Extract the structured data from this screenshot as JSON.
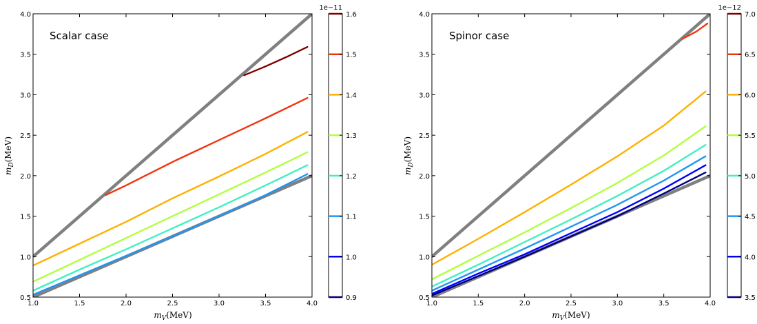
{
  "chart_data": [
    {
      "type": "line",
      "annotation": "Scalar case",
      "xlabel": "m_V(MeV)",
      "ylabel": "m_D(MeV)",
      "xlim": [
        1.0,
        4.0
      ],
      "ylim": [
        0.5,
        4.0
      ],
      "x_ticks": [
        "1.0",
        "1.5",
        "2.0",
        "2.5",
        "3.0",
        "3.5",
        "4.0"
      ],
      "y_ticks": [
        "0.5",
        "1.0",
        "1.5",
        "2.0",
        "2.5",
        "3.0",
        "3.5",
        "4.0"
      ],
      "grid": false,
      "boundary_lines": [
        {
          "color": "#808080",
          "points": [
            [
              1.0,
              1.0
            ],
            [
              4.0,
              4.0
            ]
          ]
        },
        {
          "color": "#808080",
          "points": [
            [
              1.0,
              0.5
            ],
            [
              4.0,
              2.0
            ]
          ]
        }
      ],
      "contours": [
        {
          "level": "1.0",
          "color": "#0000ff",
          "points": []
        },
        {
          "level": "1.1",
          "color": "#1f96f3",
          "points": [
            [
              1.0,
              0.53
            ],
            [
              1.5,
              0.77
            ],
            [
              2.0,
              1.01
            ],
            [
              2.5,
              1.25
            ],
            [
              3.0,
              1.5
            ],
            [
              3.5,
              1.76
            ],
            [
              3.95,
              2.02
            ]
          ]
        },
        {
          "level": "1.2",
          "color": "#40f0c0",
          "points": [
            [
              1.0,
              0.58
            ],
            [
              1.5,
              0.84
            ],
            [
              2.0,
              1.09
            ],
            [
              2.5,
              1.35
            ],
            [
              3.0,
              1.61
            ],
            [
              3.5,
              1.88
            ],
            [
              3.95,
              2.13
            ]
          ]
        },
        {
          "level": "1.3",
          "color": "#b0ff40",
          "points": [
            [
              1.0,
              0.69
            ],
            [
              1.5,
              0.96
            ],
            [
              2.0,
              1.23
            ],
            [
              2.5,
              1.5
            ],
            [
              3.0,
              1.77
            ],
            [
              3.5,
              2.04
            ],
            [
              3.95,
              2.29
            ]
          ]
        },
        {
          "level": "1.4",
          "color": "#ffb000",
          "points": [
            [
              1.0,
              0.89
            ],
            [
              1.5,
              1.16
            ],
            [
              2.0,
              1.43
            ],
            [
              2.5,
              1.72
            ],
            [
              3.0,
              1.99
            ],
            [
              3.5,
              2.27
            ],
            [
              3.95,
              2.54
            ]
          ]
        },
        {
          "level": "1.5",
          "color": "#f03410",
          "points": [
            [
              1.78,
              1.76
            ],
            [
              2.0,
              1.88
            ],
            [
              2.5,
              2.17
            ],
            [
              3.0,
              2.44
            ],
            [
              3.5,
              2.71
            ],
            [
              3.95,
              2.96
            ]
          ]
        },
        {
          "level": "1.6",
          "color": "#800000",
          "points": [
            [
              3.27,
              3.24
            ],
            [
              3.5,
              3.35
            ],
            [
              3.75,
              3.48
            ],
            [
              3.95,
              3.59
            ]
          ]
        }
      ],
      "colorbar": {
        "ticks": [
          "0.9",
          "1.0",
          "1.1",
          "1.2",
          "1.3",
          "1.4",
          "1.5",
          "1.6"
        ],
        "range": [
          0.9,
          1.6
        ],
        "exponent": "1e−11",
        "marks": [
          {
            "value": 0.9,
            "color": "#000080"
          },
          {
            "value": 1.0,
            "color": "#0000ff"
          },
          {
            "value": 1.1,
            "color": "#1f96f3"
          },
          {
            "value": 1.2,
            "color": "#40f0c0"
          },
          {
            "value": 1.3,
            "color": "#b0ff40"
          },
          {
            "value": 1.4,
            "color": "#ffb000"
          },
          {
            "value": 1.5,
            "color": "#f03410"
          },
          {
            "value": 1.6,
            "color": "#800000"
          }
        ]
      }
    },
    {
      "type": "line",
      "annotation": "Spinor case",
      "xlabel": "m_V(MeV)",
      "ylabel": "m_D(MeV)",
      "xlim": [
        1.0,
        4.0
      ],
      "ylim": [
        0.5,
        4.0
      ],
      "x_ticks": [
        "1.0",
        "1.5",
        "2.0",
        "2.5",
        "3.0",
        "3.5",
        "4.0"
      ],
      "y_ticks": [
        "0.5",
        "1.0",
        "1.5",
        "2.0",
        "2.5",
        "3.0",
        "3.5",
        "4.0"
      ],
      "grid": false,
      "boundary_lines": [
        {
          "color": "#808080",
          "points": [
            [
              1.0,
              1.0
            ],
            [
              4.0,
              4.0
            ]
          ]
        },
        {
          "color": "#808080",
          "points": [
            [
              1.0,
              0.5
            ],
            [
              4.0,
              2.0
            ]
          ]
        }
      ],
      "contours": [
        {
          "level": "3.5",
          "color": "#000080",
          "points": [
            [
              1.0,
              0.52
            ],
            [
              1.5,
              0.76
            ],
            [
              2.0,
              1.0
            ],
            [
              2.5,
              1.25
            ],
            [
              3.0,
              1.5
            ],
            [
              3.5,
              1.78
            ],
            [
              3.95,
              2.04
            ]
          ]
        },
        {
          "level": "4.0",
          "color": "#0000ff",
          "points": [
            [
              1.0,
              0.54
            ],
            [
              1.5,
              0.79
            ],
            [
              2.0,
              1.03
            ],
            [
              2.5,
              1.29
            ],
            [
              3.0,
              1.55
            ],
            [
              3.5,
              1.84
            ],
            [
              3.95,
              2.13
            ]
          ]
        },
        {
          "level": "4.5",
          "color": "#1f96f3",
          "points": [
            [
              1.0,
              0.58
            ],
            [
              1.5,
              0.84
            ],
            [
              2.0,
              1.1
            ],
            [
              2.5,
              1.37
            ],
            [
              3.0,
              1.64
            ],
            [
              3.5,
              1.94
            ],
            [
              3.95,
              2.24
            ]
          ]
        },
        {
          "level": "5.0",
          "color": "#40f0c0",
          "points": [
            [
              1.0,
              0.63
            ],
            [
              1.5,
              0.9
            ],
            [
              2.0,
              1.18
            ],
            [
              2.5,
              1.46
            ],
            [
              3.0,
              1.75
            ],
            [
              3.5,
              2.06
            ],
            [
              3.95,
              2.38
            ]
          ]
        },
        {
          "level": "5.5",
          "color": "#b0ff40",
          "points": [
            [
              1.0,
              0.72
            ],
            [
              1.5,
              1.01
            ],
            [
              2.0,
              1.3
            ],
            [
              2.5,
              1.6
            ],
            [
              3.0,
              1.91
            ],
            [
              3.5,
              2.25
            ],
            [
              3.95,
              2.61
            ]
          ]
        },
        {
          "level": "6.0",
          "color": "#ffb000",
          "points": [
            [
              1.0,
              0.9
            ],
            [
              1.5,
              1.22
            ],
            [
              2.0,
              1.55
            ],
            [
              2.5,
              1.89
            ],
            [
              3.0,
              2.24
            ],
            [
              3.5,
              2.62
            ],
            [
              3.95,
              3.04
            ]
          ]
        },
        {
          "level": "6.5",
          "color": "#f03410",
          "points": [
            [
              3.7,
              3.69
            ],
            [
              3.85,
              3.78
            ],
            [
              3.97,
              3.88
            ]
          ]
        },
        {
          "level": "7.0",
          "color": "#800000",
          "points": []
        }
      ],
      "colorbar": {
        "ticks": [
          "3.5",
          "4.0",
          "4.5",
          "5.0",
          "5.5",
          "6.0",
          "6.5",
          "7.0"
        ],
        "range": [
          3.5,
          7.0
        ],
        "exponent": "1e−12",
        "marks": [
          {
            "value": 3.5,
            "color": "#000080"
          },
          {
            "value": 4.0,
            "color": "#0000ff"
          },
          {
            "value": 4.5,
            "color": "#1f96f3"
          },
          {
            "value": 5.0,
            "color": "#40f0c0"
          },
          {
            "value": 5.5,
            "color": "#b0ff40"
          },
          {
            "value": 6.0,
            "color": "#ffb000"
          },
          {
            "value": 6.5,
            "color": "#f03410"
          },
          {
            "value": 7.0,
            "color": "#800000"
          }
        ]
      }
    }
  ]
}
